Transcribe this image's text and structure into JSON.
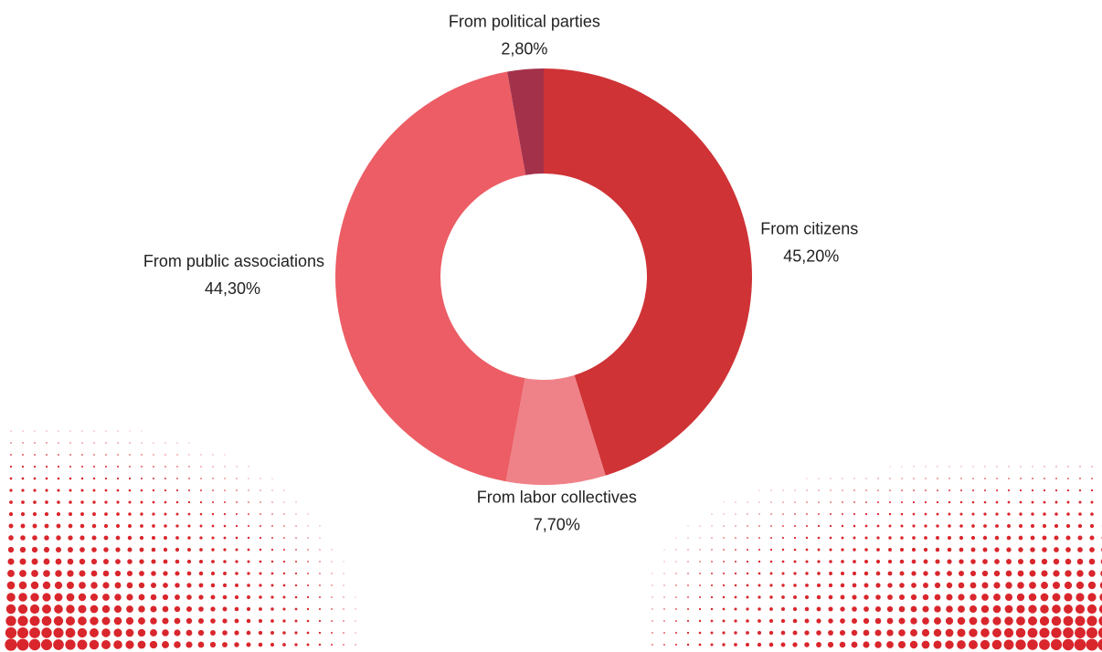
{
  "chart_data": {
    "type": "donut",
    "categories": [
      "From citizens",
      "From labor collectives",
      "From public associations",
      "From political parties"
    ],
    "values": [
      45.2,
      7.7,
      44.3,
      2.8
    ],
    "value_labels": [
      "45,20%",
      "7,70%",
      "44,30%",
      "2,80%"
    ],
    "colors": [
      "#cf3336",
      "#ef8288",
      "#ec5d65",
      "#a3314a"
    ]
  }
}
